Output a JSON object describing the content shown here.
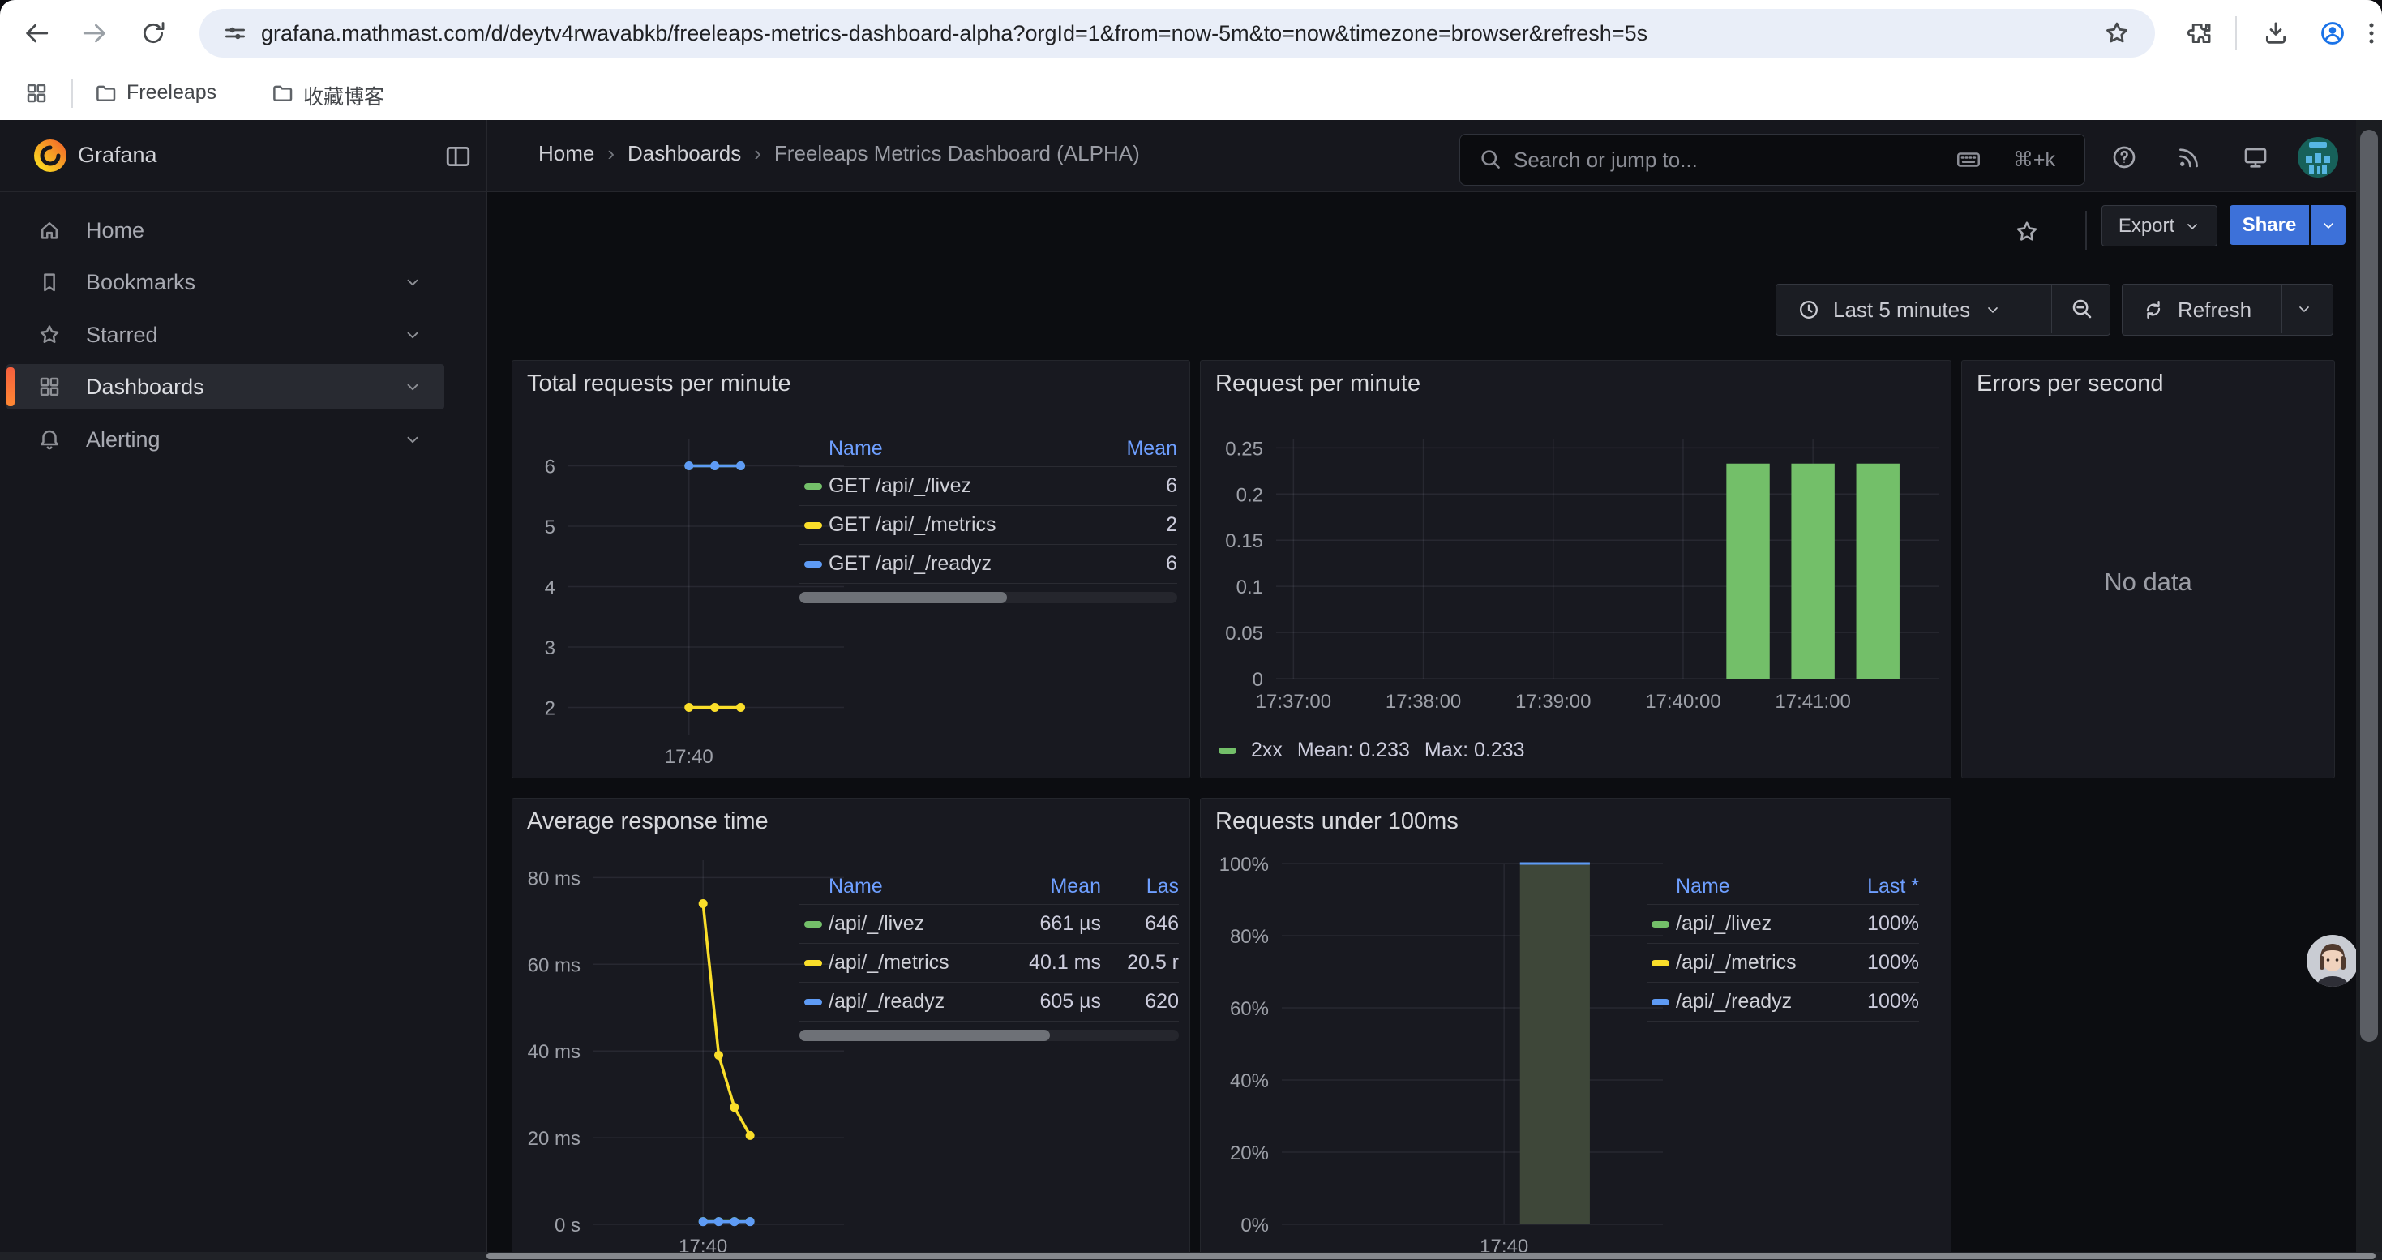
{
  "browser": {
    "url": "grafana.mathmast.com/d/deytv4rwavabkb/freeleaps-metrics-dashboard-alpha?orgId=1&from=now-5m&to=now&timezone=browser&refresh=5s",
    "bookmarks": [
      {
        "label": "Freeleaps"
      },
      {
        "label": "收藏博客"
      }
    ]
  },
  "header": {
    "brand": "Grafana",
    "breadcrumb": [
      "Home",
      "Dashboards",
      "Freeleaps Metrics Dashboard (ALPHA)"
    ],
    "search": {
      "placeholder": "Search or jump to...",
      "shortcut": "⌘+k"
    }
  },
  "sidebar": {
    "items": [
      {
        "label": "Home",
        "icon": "home",
        "active": false,
        "expandable": false
      },
      {
        "label": "Bookmarks",
        "icon": "bookmark",
        "active": false,
        "expandable": true
      },
      {
        "label": "Starred",
        "icon": "star",
        "active": false,
        "expandable": true
      },
      {
        "label": "Dashboards",
        "icon": "grid",
        "active": true,
        "expandable": true
      },
      {
        "label": "Alerting",
        "icon": "bell",
        "active": false,
        "expandable": true
      }
    ]
  },
  "toolbar": {
    "export_label": "Export",
    "share_label": "Share"
  },
  "timebar": {
    "range_label": "Last 5 minutes",
    "refresh_label": "Refresh"
  },
  "colors": {
    "accent_blue": "#3d71d9",
    "link_blue": "#6e9fff",
    "green": "#73bf69",
    "yellow": "#fade2a",
    "blue": "#5e9bf5",
    "orange_a": "#f55f3e",
    "orange_b": "#ff8833"
  },
  "chart_data": [
    {
      "title": "Total requests per minute",
      "type": "line",
      "x_domain": [
        "17:38:50",
        "17:41:30"
      ],
      "x_ticks": [
        {
          "t": "17:40:00",
          "label": "17:40"
        }
      ],
      "y_ticks": [
        {
          "v": 2,
          "label": "2"
        },
        {
          "v": 3,
          "label": "3"
        },
        {
          "v": 4,
          "label": "4"
        },
        {
          "v": 5,
          "label": "5"
        },
        {
          "v": 6,
          "label": "6"
        }
      ],
      "ylim": [
        1.55,
        6.45
      ],
      "series": [
        {
          "name": "GET /api/_/livez",
          "color": "#73bf69",
          "mean": 6,
          "points": [
            {
              "t": "17:40:00",
              "v": 6
            },
            {
              "t": "17:40:15",
              "v": 6
            },
            {
              "t": "17:40:30",
              "v": 6
            }
          ]
        },
        {
          "name": "GET /api/_/metrics",
          "color": "#fade2a",
          "mean": 2,
          "points": [
            {
              "t": "17:40:00",
              "v": 2
            },
            {
              "t": "17:40:15",
              "v": 2
            },
            {
              "t": "17:40:30",
              "v": 2
            }
          ]
        },
        {
          "name": "GET /api/_/readyz",
          "color": "#5e9bf5",
          "mean": 6,
          "points": [
            {
              "t": "17:40:00",
              "v": 6
            },
            {
              "t": "17:40:15",
              "v": 6
            },
            {
              "t": "17:40:30",
              "v": 6
            }
          ]
        }
      ],
      "legend": {
        "columns": [
          "Name",
          "Mean"
        ],
        "rows": [
          {
            "color": "#73bf69",
            "name": "GET /api/_/livez",
            "values": [
              "6"
            ]
          },
          {
            "color": "#fade2a",
            "name": "GET /api/_/metrics",
            "values": [
              "2"
            ]
          },
          {
            "color": "#5e9bf5",
            "name": "GET /api/_/readyz",
            "values": [
              "6"
            ]
          }
        ],
        "scrollbar": true
      }
    },
    {
      "title": "Request per minute",
      "type": "bar",
      "x_domain": [
        "17:36:52",
        "17:41:58"
      ],
      "x_ticks": [
        {
          "t": "17:37:00",
          "label": "17:37:00"
        },
        {
          "t": "17:38:00",
          "label": "17:38:00"
        },
        {
          "t": "17:39:00",
          "label": "17:39:00"
        },
        {
          "t": "17:40:00",
          "label": "17:40:00"
        },
        {
          "t": "17:41:00",
          "label": "17:41:00"
        }
      ],
      "y_ticks": [
        {
          "v": 0,
          "label": "0"
        },
        {
          "v": 0.05,
          "label": "0.05"
        },
        {
          "v": 0.1,
          "label": "0.1"
        },
        {
          "v": 0.15,
          "label": "0.15"
        },
        {
          "v": 0.2,
          "label": "0.2"
        },
        {
          "v": 0.25,
          "label": "0.25"
        }
      ],
      "ylim": [
        0,
        0.26
      ],
      "bar_width_s": 20,
      "series": [
        {
          "name": "2xx",
          "color": "#73bf69",
          "stat_mean": "Mean: 0.233",
          "stat_max": "Max: 0.233",
          "points": [
            {
              "t": "17:40:30",
              "v": 0.233
            },
            {
              "t": "17:41:00",
              "v": 0.233
            },
            {
              "t": "17:41:30",
              "v": 0.233
            }
          ]
        }
      ]
    },
    {
      "title": "Errors per second",
      "type": "empty",
      "message": "No data"
    },
    {
      "title": "Average response time",
      "type": "line",
      "x_domain": [
        "17:38:50",
        "17:41:30"
      ],
      "x_ticks": [
        {
          "t": "17:40:00",
          "label": "17:40"
        }
      ],
      "y_ticks": [
        {
          "v": 0,
          "label": "0 s"
        },
        {
          "v": 20,
          "label": "20 ms"
        },
        {
          "v": 40,
          "label": "40 ms"
        },
        {
          "v": 60,
          "label": "60 ms"
        },
        {
          "v": 80,
          "label": "80 ms"
        }
      ],
      "ylim": [
        0,
        84
      ],
      "series": [
        {
          "name": "/api/_/livez",
          "color": "#73bf69",
          "mean": "661 µs",
          "points": [
            {
              "t": "17:40:00",
              "v": 0.66
            },
            {
              "t": "17:40:10",
              "v": 0.66
            },
            {
              "t": "17:40:20",
              "v": 0.65
            },
            {
              "t": "17:40:30",
              "v": 0.65
            }
          ]
        },
        {
          "name": "/api/_/metrics",
          "color": "#fade2a",
          "mean": "40.1 ms",
          "points": [
            {
              "t": "17:40:00",
              "v": 74
            },
            {
              "t": "17:40:10",
              "v": 39
            },
            {
              "t": "17:40:20",
              "v": 27
            },
            {
              "t": "17:40:30",
              "v": 20.5
            }
          ]
        },
        {
          "name": "/api/_/readyz",
          "color": "#5e9bf5",
          "mean": "605 µs",
          "points": [
            {
              "t": "17:40:00",
              "v": 0.6
            },
            {
              "t": "17:40:10",
              "v": 0.62
            },
            {
              "t": "17:40:20",
              "v": 0.6
            },
            {
              "t": "17:40:30",
              "v": 0.62
            }
          ]
        }
      ],
      "legend": {
        "columns": [
          "Name",
          "Mean",
          "Las"
        ],
        "rows": [
          {
            "color": "#73bf69",
            "name": "/api/_/livez",
            "values": [
              "661 µs",
              "646"
            ]
          },
          {
            "color": "#fade2a",
            "name": "/api/_/metrics",
            "values": [
              "40.1 ms",
              "20.5 r"
            ]
          },
          {
            "color": "#5e9bf5",
            "name": "/api/_/readyz",
            "values": [
              "605 µs",
              "620"
            ]
          }
        ],
        "scrollbar": true
      }
    },
    {
      "title": "Requests under 100ms",
      "type": "area",
      "x_domain": [
        "17:38:50",
        "17:40:50"
      ],
      "x_ticks": [
        {
          "t": "17:40:00",
          "label": "17:40"
        }
      ],
      "y_ticks": [
        {
          "v": 0,
          "label": "0%"
        },
        {
          "v": 20,
          "label": "20%"
        },
        {
          "v": 40,
          "label": "40%"
        },
        {
          "v": 60,
          "label": "60%"
        },
        {
          "v": 80,
          "label": "80%"
        },
        {
          "v": 100,
          "label": "100%"
        }
      ],
      "ylim": [
        0,
        100
      ],
      "area": {
        "from": "17:40:05",
        "to": "17:40:27",
        "v": 100,
        "fill": "#3e4739",
        "line": "#5e9bf5"
      },
      "legend": {
        "columns": [
          "Name",
          "Last *"
        ],
        "rows": [
          {
            "color": "#73bf69",
            "name": "/api/_/livez",
            "values": [
              "100%"
            ]
          },
          {
            "color": "#fade2a",
            "name": "/api/_/metrics",
            "values": [
              "100%"
            ]
          },
          {
            "color": "#5e9bf5",
            "name": "/api/_/readyz",
            "values": [
              "100%"
            ]
          }
        ],
        "scrollbar": false
      }
    }
  ]
}
